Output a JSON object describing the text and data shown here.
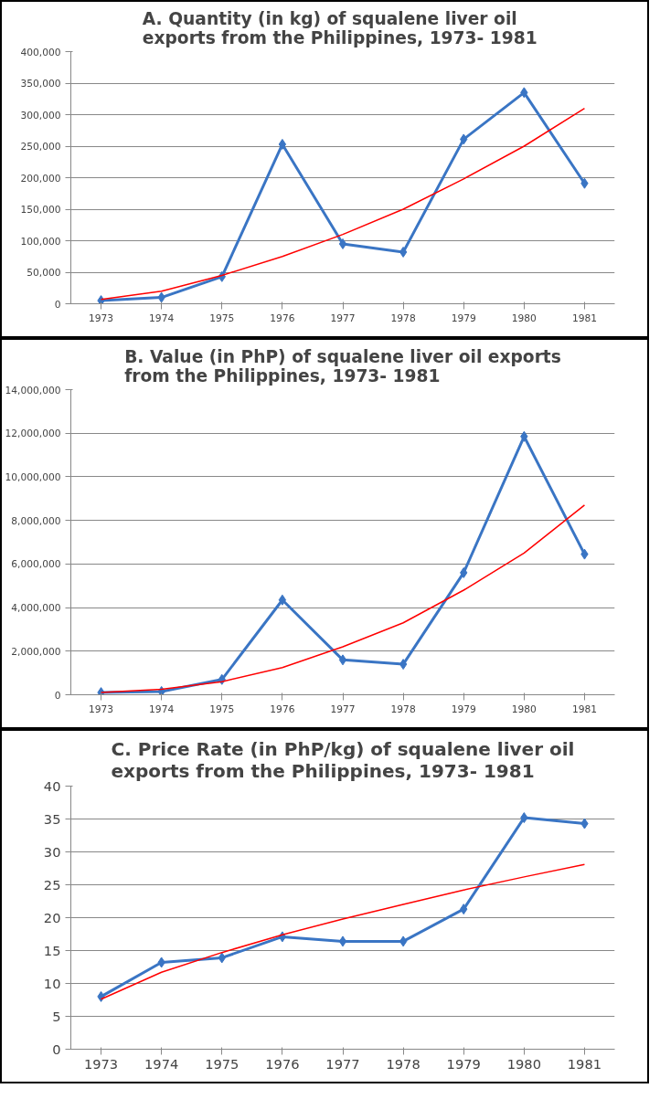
{
  "chart_data": [
    {
      "type": "line",
      "title": "A. Quantity (in kg) of squalene liver oil\nexports from the Philippines,  1973- 1981",
      "categories": [
        "1973",
        "1974",
        "1975",
        "1976",
        "1977",
        "1978",
        "1979",
        "1980",
        "1981"
      ],
      "series": [
        {
          "color": "#3a75c4",
          "marker": "diamond",
          "values": [
            5000,
            10000,
            43000,
            253000,
            95000,
            82000,
            261000,
            335000,
            191000
          ]
        },
        {
          "color": "#ff0000",
          "marker": "none",
          "values": [
            7000,
            20000,
            45000,
            75000,
            110000,
            150000,
            198000,
            250000,
            310000
          ]
        }
      ],
      "ylim": [
        0,
        400000
      ],
      "yticks": [
        0,
        {
          "value": 50000,
          "label": "50,000"
        },
        {
          "value": 100000,
          "label": "100,000"
        },
        {
          "value": 150000,
          "label": "150,000"
        },
        {
          "value": 200000,
          "label": "200,000"
        },
        {
          "value": 250000,
          "label": "250,000"
        },
        {
          "value": 300000,
          "label": "300,000"
        },
        {
          "value": 350000,
          "label": "350,000"
        },
        {
          "value": 400000,
          "label": "400,000"
        }
      ],
      "grid": "y"
    },
    {
      "type": "line",
      "title": "B. Value (in PhP) of squalene liver oil exports\nfrom the Philippines, 1973- 1981",
      "categories": [
        "1973",
        "1974",
        "1975",
        "1976",
        "1977",
        "1978",
        "1979",
        "1980",
        "1981"
      ],
      "series": [
        {
          "color": "#3a75c4",
          "marker": "diamond",
          "values": [
            100000,
            150000,
            700000,
            4350000,
            1600000,
            1400000,
            5600000,
            11850000,
            6450000
          ]
        },
        {
          "color": "#ff0000",
          "marker": "none",
          "values": [
            100000,
            250000,
            600000,
            1250000,
            2200000,
            3300000,
            4800000,
            6500000,
            8700000
          ]
        }
      ],
      "ylim": [
        0,
        14000000
      ],
      "yticks": [
        0,
        {
          "value": 2000000,
          "label": "2,000,000"
        },
        {
          "value": 4000000,
          "label": "4,000,000"
        },
        {
          "value": 6000000,
          "label": "6,000,000"
        },
        {
          "value": 8000000,
          "label": "8,000,000"
        },
        {
          "value": 10000000,
          "label": "10,000,000"
        },
        {
          "value": 12000000,
          "label": "12,000,000"
        },
        {
          "value": 14000000,
          "label": "14,000,000"
        }
      ],
      "grid": "y"
    },
    {
      "type": "line",
      "title": "C. Price Rate (in PhP/kg) of squalene liver oil\nexports from the Philippines, 1973- 1981",
      "categories": [
        "1973",
        "1974",
        "1975",
        "1976",
        "1977",
        "1978",
        "1979",
        "1980",
        "1981"
      ],
      "series": [
        {
          "color": "#3a75c4",
          "marker": "diamond",
          "values": [
            8,
            13.2,
            13.9,
            17.1,
            16.4,
            16.4,
            21.3,
            35.2,
            34.3
          ]
        },
        {
          "color": "#ff0000",
          "marker": "none",
          "values": [
            7.6,
            11.7,
            14.7,
            17.4,
            19.8,
            22,
            24.2,
            26.2,
            28.1
          ]
        }
      ],
      "ylim": [
        0,
        40
      ],
      "yticks": [
        0,
        5,
        10,
        15,
        20,
        25,
        30,
        35,
        40
      ],
      "grid": "y"
    }
  ]
}
